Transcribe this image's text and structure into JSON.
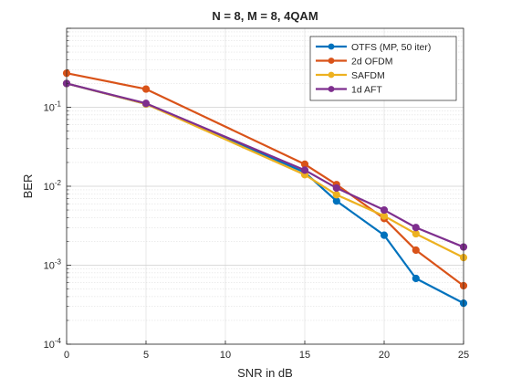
{
  "chart_data": {
    "type": "line",
    "title": "N = 8, M = 8, 4QAM",
    "xlabel": "SNR in dB",
    "ylabel": "BER",
    "xlim": [
      0,
      25
    ],
    "ylim": [
      0.0001,
      1
    ],
    "yscale": "log",
    "xticks": [
      0,
      5,
      10,
      15,
      20,
      25
    ],
    "yticks": [
      {
        "value": 0.0001,
        "base": "10",
        "exp": "-4"
      },
      {
        "value": 0.001,
        "base": "10",
        "exp": "-3"
      },
      {
        "value": 0.01,
        "base": "10",
        "exp": "-2"
      },
      {
        "value": 0.1,
        "base": "10",
        "exp": "-1"
      }
    ],
    "grid": true,
    "legend_position": "top-right",
    "x": [
      0,
      5,
      15,
      17,
      20,
      22,
      25
    ],
    "series": [
      {
        "name": "OTFS (MP, 50 iter)",
        "color": "#0072BD",
        "values": [
          0.2,
          0.11,
          0.015,
          0.0065,
          0.0024,
          0.00068,
          0.00033
        ]
      },
      {
        "name": "2d OFDM",
        "color": "#D95319",
        "values": [
          0.27,
          0.17,
          0.019,
          0.0105,
          0.0039,
          0.00155,
          0.00055
        ]
      },
      {
        "name": "SAFDM",
        "color": "#EDB120",
        "values": [
          0.2,
          0.11,
          0.014,
          0.0078,
          0.0042,
          0.0025,
          0.00125
        ]
      },
      {
        "name": "1d AFT",
        "color": "#7E2F8E",
        "values": [
          0.2,
          0.112,
          0.016,
          0.0095,
          0.005,
          0.003,
          0.0017
        ]
      }
    ]
  }
}
